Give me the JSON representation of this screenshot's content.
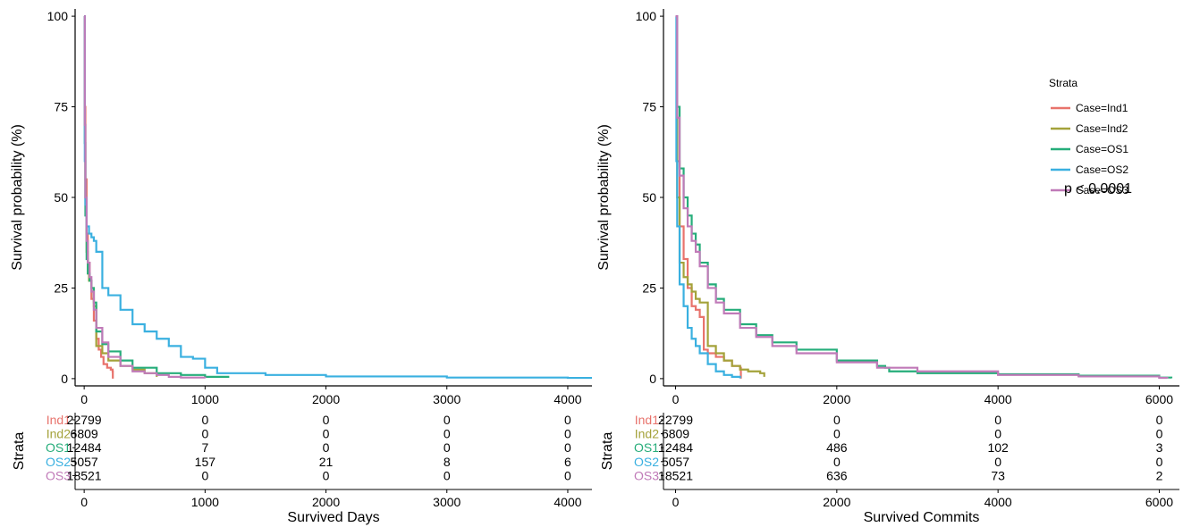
{
  "chart_data": [
    {
      "type": "line",
      "subtype": "kaplan-meier",
      "xlabel": "Survived Days",
      "ylabel": "Survival probability (%)",
      "xlim": [
        -75,
        4200
      ],
      "ylim": [
        -2,
        102
      ],
      "xticks": [
        0,
        1000,
        2000,
        3000,
        4000
      ],
      "yticks": [
        0,
        25,
        50,
        75,
        100
      ],
      "colors": {
        "Ind1": "#E8736C",
        "Ind2": "#A4A23A",
        "OS1": "#26AD7A",
        "OS2": "#3AB0E0",
        "OS3": "#C07AB8"
      },
      "series": [
        {
          "name": "Ind1",
          "x": [
            0,
            5,
            10,
            20,
            30,
            45,
            60,
            80,
            100,
            120,
            140,
            160,
            190,
            220,
            235,
            237
          ],
          "y": [
            100,
            75,
            55,
            40,
            32,
            27,
            22,
            16,
            11,
            8,
            6,
            4,
            3,
            2.5,
            2,
            0
          ]
        },
        {
          "name": "Ind2",
          "x": [
            0,
            5,
            10,
            20,
            30,
            40,
            60,
            80,
            100,
            150,
            200,
            300,
            400,
            500,
            600
          ],
          "y": [
            100,
            70,
            50,
            35,
            29,
            27,
            25,
            20,
            9,
            7,
            5,
            3.5,
            2.5,
            1.5,
            0.5
          ]
        },
        {
          "name": "OS1",
          "x": [
            0,
            5,
            10,
            20,
            30,
            45,
            60,
            80,
            100,
            150,
            200,
            300,
            400,
            600,
            800,
            1000,
            1200
          ],
          "y": [
            100,
            65,
            45,
            33,
            29,
            27,
            25,
            21,
            13,
            9.5,
            7.5,
            5,
            3,
            1.5,
            1,
            0.5,
            0.5
          ]
        },
        {
          "name": "OS2",
          "x": [
            0,
            5,
            10,
            20,
            40,
            60,
            80,
            100,
            150,
            200,
            300,
            400,
            500,
            600,
            700,
            800,
            900,
            1000,
            1100,
            1500,
            2000,
            3000,
            4000,
            4200
          ],
          "y": [
            100,
            60,
            48,
            42,
            40,
            39,
            38,
            35,
            25,
            23,
            19,
            15,
            13,
            11,
            9,
            6,
            5.5,
            3,
            1.5,
            1,
            0.6,
            0.3,
            0.2,
            0.2
          ]
        },
        {
          "name": "OS3",
          "x": [
            0,
            5,
            10,
            20,
            30,
            45,
            60,
            80,
            100,
            150,
            200,
            300,
            400,
            500,
            600,
            700,
            800,
            1000
          ],
          "y": [
            100,
            70,
            50,
            38,
            32,
            28,
            24,
            19,
            14,
            10,
            6,
            3.5,
            2,
            1.5,
            1,
            0.5,
            0.3,
            0.1
          ]
        }
      ],
      "risk_table": {
        "title": "Strata",
        "times": [
          "0",
          "1000",
          "2000",
          "3000",
          "4000"
        ],
        "rows": [
          {
            "label": "Ind1",
            "values": [
              "22799",
              "0",
              "0",
              "0",
              "0"
            ]
          },
          {
            "label": "Ind2",
            "values": [
              "6809",
              "0",
              "0",
              "0",
              "0"
            ]
          },
          {
            "label": "OS1",
            "values": [
              "12484",
              "7",
              "0",
              "0",
              "0"
            ]
          },
          {
            "label": "OS2",
            "values": [
              "5057",
              "157",
              "21",
              "8",
              "6"
            ]
          },
          {
            "label": "OS3",
            "values": [
              "18521",
              "0",
              "0",
              "0",
              "0"
            ]
          }
        ],
        "xlabel": "Survived Days"
      }
    },
    {
      "type": "line",
      "subtype": "kaplan-meier",
      "xlabel": "Survived Commits",
      "ylabel": "Survival probability (%)",
      "xlim": [
        -150,
        6250
      ],
      "ylim": [
        -2,
        102
      ],
      "xticks": [
        0,
        2000,
        4000,
        6000
      ],
      "yticks": [
        0,
        25,
        50,
        75,
        100
      ],
      "legend": {
        "title": "Strata",
        "position": "top-right",
        "entries": [
          "Case=Ind1",
          "Case=Ind2",
          "Case=OS1",
          "Case=OS2",
          "Case=OS3"
        ]
      },
      "annotation": "p < 0.0001",
      "colors": {
        "Ind1": "#E8736C",
        "Ind2": "#A4A23A",
        "OS1": "#26AD7A",
        "OS2": "#3AB0E0",
        "OS3": "#C07AB8"
      },
      "series": [
        {
          "name": "Ind1",
          "x": [
            0,
            20,
            50,
            100,
            150,
            200,
            250,
            300,
            350,
            400,
            500,
            600,
            700,
            800,
            810
          ],
          "y": [
            100,
            60,
            42,
            33,
            25,
            20,
            19,
            17,
            8,
            7,
            6,
            5,
            3.5,
            3,
            0
          ]
        },
        {
          "name": "Ind2",
          "x": [
            0,
            20,
            50,
            100,
            150,
            200,
            250,
            300,
            400,
            500,
            600,
            700,
            800,
            900,
            1000,
            1050,
            1100
          ],
          "y": [
            100,
            50,
            32,
            28,
            26,
            24,
            22,
            21,
            9,
            7,
            5,
            3.5,
            2.5,
            2,
            2,
            1.5,
            0.5
          ]
        },
        {
          "name": "OS1",
          "x": [
            0,
            20,
            50,
            100,
            150,
            200,
            250,
            300,
            400,
            500,
            600,
            800,
            1000,
            1200,
            1500,
            2000,
            2500,
            2600,
            2650,
            3000,
            4000,
            5000,
            6000,
            6150
          ],
          "y": [
            100,
            75,
            58,
            50,
            45,
            40,
            37,
            32,
            26,
            22,
            19,
            15,
            12,
            10,
            8,
            5,
            3.5,
            3,
            2,
            1.5,
            1.2,
            0.8,
            0.3,
            0.1
          ]
        },
        {
          "name": "OS2",
          "x": [
            0,
            10,
            20,
            50,
            100,
            150,
            200,
            250,
            300,
            400,
            500,
            600,
            700,
            800
          ],
          "y": [
            100,
            60,
            42,
            26,
            20,
            14,
            11,
            9,
            7,
            4,
            2,
            1,
            0.5,
            0.1
          ]
        },
        {
          "name": "OS3",
          "x": [
            0,
            20,
            50,
            100,
            150,
            200,
            250,
            300,
            400,
            500,
            600,
            800,
            1000,
            1200,
            1500,
            2000,
            2500,
            3000,
            4000,
            5000,
            6000,
            6100
          ],
          "y": [
            100,
            72,
            56,
            47,
            42,
            38,
            35,
            31,
            25,
            21,
            18,
            14,
            11.5,
            9,
            7,
            4.5,
            3,
            2,
            1,
            0.6,
            0.2,
            0.1
          ]
        }
      ],
      "risk_table": {
        "title": "Strata",
        "times": [
          "0",
          "2000",
          "4000",
          "6000"
        ],
        "rows": [
          {
            "label": "Ind1",
            "values": [
              "22799",
              "0",
              "0",
              "0"
            ]
          },
          {
            "label": "Ind2",
            "values": [
              "6809",
              "0",
              "0",
              "0"
            ]
          },
          {
            "label": "OS1",
            "values": [
              "12484",
              "486",
              "102",
              "3"
            ]
          },
          {
            "label": "OS2",
            "values": [
              "5057",
              "0",
              "0",
              "0"
            ]
          },
          {
            "label": "OS3",
            "values": [
              "18521",
              "636",
              "73",
              "2"
            ]
          }
        ],
        "xlabel": "Survived Commits"
      }
    }
  ]
}
